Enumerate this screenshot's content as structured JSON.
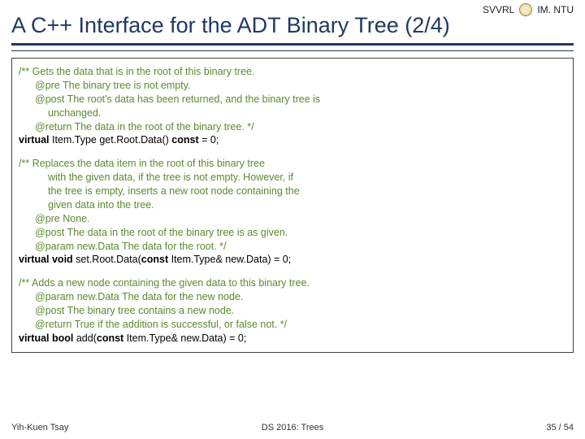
{
  "header": {
    "left": "SVVRL",
    "right": "IM. NTU"
  },
  "title": "A C++ Interface for the ADT Binary Tree (2/4)",
  "blocks": [
    {
      "c1": "/** Gets the data that is in the root of this binary tree.",
      "c2": "@pre  The binary tree is not empty.",
      "c3": "@post  The root's data has been returned, and the binary tree is",
      "c4": "unchanged.",
      "c5": "@return  The data in the root of the binary tree. */",
      "code_kw1": "virtual",
      "code_mid1": " Item.Type get.Root.Data() ",
      "code_kw2": "const",
      "code_tail1": " = 0;"
    },
    {
      "c1": "/** Replaces the data item in the root of this binary tree",
      "c2": "with the given data, if the tree is not empty. However, if",
      "c3": "the tree is empty, inserts a new root node containing the",
      "c4": "given data into the tree.",
      "c5": "@pre  None.",
      "c6": "@post  The data in the root of the binary tree is as given.",
      "c7": "@param new.Data  The data for the root. */",
      "code_kw1": "virtual void",
      "code_mid1": " set.Root.Data(",
      "code_kw2": "const",
      "code_tail1": " Item.Type& new.Data) = 0;"
    },
    {
      "c1": "/** Adds a new node containing the given data to this binary tree.",
      "c2": "@param new.Data  The data for the new node.",
      "c3": "@post  The binary tree contains a new node.",
      "c4": "@return  True if the addition is successful, or false not. */",
      "code_kw1": "virtual bool",
      "code_mid1": " add(",
      "code_kw2": "const",
      "code_tail1": " Item.Type& new.Data) = 0;"
    }
  ],
  "footer": {
    "left": "Yih-Kuen Tsay",
    "center": "DS 2016: Trees",
    "right": "35 / 54"
  },
  "colors": {
    "title": "#203864",
    "comment": "#5a8a2f",
    "text": "#000000",
    "bg": "#ffffff"
  }
}
